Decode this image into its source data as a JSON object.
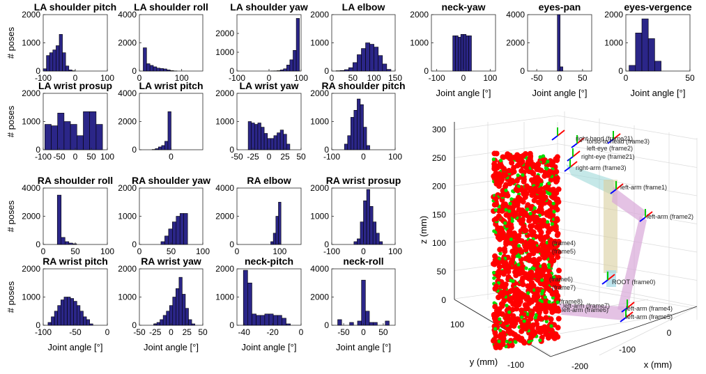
{
  "xlabel_common": "Joint angle [°]",
  "ylabel_common": "# poses",
  "colors": {
    "bar_fill": "#2b2688",
    "bar_edge": "#000000",
    "red": "#ff0000",
    "green": "#00dd00"
  },
  "chart_data": [
    {
      "type": "bar",
      "title": "LA shoulder pitch",
      "ylim": [
        0,
        2000
      ],
      "yticks": [
        0,
        1000,
        2000
      ],
      "xlim": [
        -100,
        100
      ],
      "xticks": [
        -100,
        0,
        100
      ],
      "bins": [
        -95,
        -85,
        -75,
        -65,
        -55,
        -45,
        -35,
        -25,
        -15,
        -5,
        5,
        15,
        25
      ],
      "values": [
        80,
        550,
        650,
        750,
        900,
        1300,
        650,
        180,
        40,
        10,
        0,
        0,
        0
      ]
    },
    {
      "type": "bar",
      "title": "LA shoulder roll",
      "ylim": [
        0,
        4000
      ],
      "yticks": [
        0,
        2000,
        4000
      ],
      "xlim": [
        0,
        150
      ],
      "xticks": [
        0,
        100
      ],
      "bins": [
        13,
        21,
        29,
        37,
        45,
        53,
        61,
        69,
        77,
        85,
        93
      ],
      "values": [
        1650,
        520,
        400,
        300,
        210,
        180,
        150,
        80,
        30,
        10,
        0
      ]
    },
    {
      "type": "bar",
      "title": "LA shoulder yaw",
      "ylim": [
        0,
        3000
      ],
      "yticks": [
        0,
        1000,
        2000
      ],
      "xlim": [
        -100,
        100
      ],
      "xticks": [
        -100,
        0,
        100
      ],
      "bins": [
        10,
        20,
        30,
        40,
        50,
        60,
        70,
        80,
        90
      ],
      "values": [
        5,
        10,
        20,
        60,
        120,
        320,
        600,
        1100,
        2800
      ]
    },
    {
      "type": "bar",
      "title": "LA elbow",
      "ylim": [
        0,
        2000
      ],
      "yticks": [
        0,
        1000,
        2000
      ],
      "xlim": [
        0,
        150
      ],
      "xticks": [
        0,
        50,
        100,
        150
      ],
      "bins": [
        15,
        25,
        35,
        45,
        55,
        65,
        75,
        85,
        95,
        105,
        115,
        125,
        135
      ],
      "values": [
        10,
        20,
        50,
        120,
        300,
        580,
        800,
        1000,
        950,
        850,
        550,
        250,
        60
      ]
    },
    {
      "type": "bar",
      "title": "neck-yaw",
      "ylim": [
        0,
        2000
      ],
      "yticks": [
        0,
        1000,
        2000
      ],
      "xlim": [
        -120,
        120
      ],
      "xticks": [
        -100,
        0,
        100
      ],
      "bins": [
        -45,
        -35,
        -25,
        -15,
        -5,
        5,
        15,
        25,
        35
      ],
      "values": [
        0,
        1250,
        1250,
        1200,
        1300,
        1300,
        1250,
        1250,
        0
      ]
    },
    {
      "type": "bar",
      "title": "eyes-pan",
      "ylim": [
        0,
        4000
      ],
      "yticks": [
        0,
        2000,
        4000
      ],
      "xlim": [
        -70,
        70
      ],
      "xticks": [
        -50,
        0,
        50
      ],
      "bins": [
        -20,
        -14,
        -8,
        -2,
        4,
        10,
        16
      ],
      "values": [
        0,
        0,
        0,
        4000,
        300,
        0,
        0
      ]
    },
    {
      "type": "bar",
      "title": "eyes-vergence",
      "ylim": [
        0,
        2000
      ],
      "yticks": [
        0,
        1000,
        2000
      ],
      "xlim": [
        0,
        50
      ],
      "xticks": [
        0,
        50
      ],
      "bins": [
        5,
        10,
        15,
        20,
        25,
        30
      ],
      "values": [
        200,
        1350,
        1850,
        1150,
        350,
        0
      ]
    },
    {
      "type": "bar",
      "title": "LA wrist prosup",
      "ylim": [
        0,
        2000
      ],
      "yticks": [
        0,
        1000,
        2000
      ],
      "xlim": [
        -100,
        100
      ],
      "xticks": [
        -100,
        -50,
        0,
        50,
        100
      ],
      "bins": [
        -85,
        -65,
        -45,
        -25,
        -5,
        15,
        35,
        55,
        75
      ],
      "values": [
        900,
        850,
        1300,
        1000,
        900,
        500,
        1350,
        1350,
        900
      ]
    },
    {
      "type": "bar",
      "title": "LA wrist pitch",
      "ylim": [
        0,
        4000
      ],
      "yticks": [
        0,
        2000,
        4000
      ],
      "xlim": [
        -100,
        100
      ],
      "xticks": [
        0
      ],
      "bins": [
        -55,
        -45,
        -35,
        -25,
        -15,
        -5,
        5
      ],
      "values": [
        20,
        80,
        200,
        300,
        600,
        2700,
        0
      ]
    },
    {
      "type": "bar",
      "title": "LA wrist yaw",
      "ylim": [
        0,
        2000
      ],
      "yticks": [
        0,
        1000,
        2000
      ],
      "xlim": [
        -50,
        50
      ],
      "xticks": [
        -50,
        -25,
        0,
        25,
        50
      ],
      "bins": [
        -30,
        -25,
        -20,
        -15,
        -10,
        -5,
        0,
        5,
        10,
        15,
        20,
        25,
        30
      ],
      "values": [
        1000,
        950,
        900,
        950,
        800,
        580,
        400,
        400,
        500,
        600,
        700,
        550,
        200
      ]
    },
    {
      "type": "bar",
      "title": "RA shoulder pitch",
      "ylim": [
        0,
        2000
      ],
      "yticks": [
        0,
        1000,
        2000
      ],
      "xlim": [
        -100,
        100
      ],
      "xticks": [
        -100,
        0,
        100
      ],
      "bins": [
        -55,
        -45,
        -35,
        -25,
        -15,
        -5,
        5,
        15
      ],
      "values": [
        200,
        500,
        1150,
        1400,
        1800,
        1600,
        800,
        150
      ]
    },
    {
      "type": "bar",
      "title": "RA shoulder roll",
      "ylim": [
        0,
        4000
      ],
      "yticks": [
        0,
        2000,
        4000
      ],
      "xlim": [
        0,
        100
      ],
      "xticks": [
        0,
        50,
        100
      ],
      "bins": [
        25,
        31,
        37,
        43,
        49
      ],
      "values": [
        3500,
        500,
        200,
        100,
        50
      ]
    },
    {
      "type": "bar",
      "title": "RA shoulder yaw",
      "ylim": [
        0,
        2000
      ],
      "yticks": [
        0,
        1000,
        2000
      ],
      "xlim": [
        0,
        100
      ],
      "xticks": [
        0,
        50,
        100
      ],
      "bins": [
        37,
        43,
        49,
        55,
        61,
        67,
        73
      ],
      "values": [
        100,
        300,
        550,
        800,
        1000,
        1100,
        1100
      ]
    },
    {
      "type": "bar",
      "title": "RA elbow",
      "ylim": [
        0,
        4000
      ],
      "yticks": [
        0,
        2000,
        4000
      ],
      "xlim": [
        0,
        150
      ],
      "xticks": [
        0,
        100
      ],
      "bins": [
        82,
        88,
        94,
        100
      ],
      "values": [
        200,
        800,
        2000,
        3000
      ]
    },
    {
      "type": "bar",
      "title": "RA wrist prosup",
      "ylim": [
        0,
        2000
      ],
      "yticks": [
        0,
        1000,
        2000
      ],
      "xlim": [
        -100,
        100
      ],
      "xticks": [
        -100,
        0,
        100
      ],
      "bins": [
        -25,
        -15,
        -5,
        5,
        15,
        25,
        35,
        45,
        55
      ],
      "values": [
        100,
        200,
        800,
        1550,
        1950,
        1350,
        800,
        400,
        100
      ]
    },
    {
      "type": "bar",
      "title": "RA wrist pitch",
      "ylim": [
        0,
        2000
      ],
      "yticks": [
        0,
        1000,
        2000
      ],
      "xlim": [
        -100,
        0
      ],
      "xticks": [
        -100,
        -50,
        0
      ],
      "bins": [
        -90,
        -85,
        -80,
        -75,
        -70,
        -65,
        -60,
        -55,
        -50,
        -45,
        -40,
        -35,
        -30,
        -25
      ],
      "values": [
        100,
        300,
        500,
        700,
        900,
        1000,
        1000,
        950,
        850,
        700,
        500,
        300,
        200,
        50
      ]
    },
    {
      "type": "bar",
      "title": "RA wrist yaw",
      "ylim": [
        0,
        2000
      ],
      "yticks": [
        0,
        1000,
        2000
      ],
      "xlim": [
        -50,
        50
      ],
      "xticks": [
        -50,
        -25,
        0,
        25,
        50
      ],
      "bins": [
        -25,
        -20,
        -15,
        -10,
        -5,
        0,
        5,
        10,
        15,
        20,
        25,
        30,
        35
      ],
      "values": [
        50,
        100,
        200,
        350,
        500,
        700,
        1000,
        1300,
        1700,
        1100,
        600,
        200,
        50
      ]
    },
    {
      "type": "bar",
      "title": "neck-pitch",
      "ylim": [
        0,
        2000
      ],
      "yticks": [
        0,
        1000,
        2000
      ],
      "xlim": [
        -45,
        0
      ],
      "xticks": [
        -40,
        -20,
        0
      ],
      "bins": [
        -39,
        -36,
        -33,
        -30,
        -27,
        -24,
        -21,
        -18,
        -15,
        -12,
        -9
      ],
      "values": [
        1950,
        1500,
        400,
        350,
        350,
        400,
        400,
        350,
        350,
        250,
        50
      ]
    },
    {
      "type": "bar",
      "title": "neck-roll",
      "ylim": [
        0,
        4000
      ],
      "yticks": [
        0,
        2000,
        4000
      ],
      "xlim": [
        -80,
        80
      ],
      "xticks": [
        -50,
        0,
        50
      ],
      "bins": [
        -60,
        -50,
        -40,
        -30,
        -20,
        -10,
        0,
        10,
        20,
        30,
        40,
        50,
        60
      ],
      "values": [
        400,
        0,
        0,
        200,
        0,
        300,
        3200,
        1000,
        200,
        200,
        0,
        0,
        300
      ]
    },
    {
      "type": "scatter3d",
      "title": "",
      "xlabel": "x (mm)",
      "ylabel": "y (mm)",
      "zlabel": "z (mm)",
      "xticks": [
        -200,
        -100,
        0
      ],
      "yticks": [
        100,
        0,
        -100
      ],
      "zticks": [
        300,
        250,
        200,
        150,
        100,
        50,
        0
      ],
      "frame_labels": [
        "right-hand (frame21)",
        "right-arm (frame3)",
        "left-arm (frame1)",
        "left-arm (frame2)",
        "left-arm (frame4)",
        "left-arm (frame5)",
        "(frame4)",
        "(frame5)",
        "(frame6)",
        "(frame7)",
        "(frame8)",
        "left-arm (frame7)",
        "left-arm (frame6)",
        "ROOT (frame0)",
        "right-eye (frame21)",
        "torso-to-head (frame3)",
        "left-eye (frame2)"
      ]
    }
  ]
}
